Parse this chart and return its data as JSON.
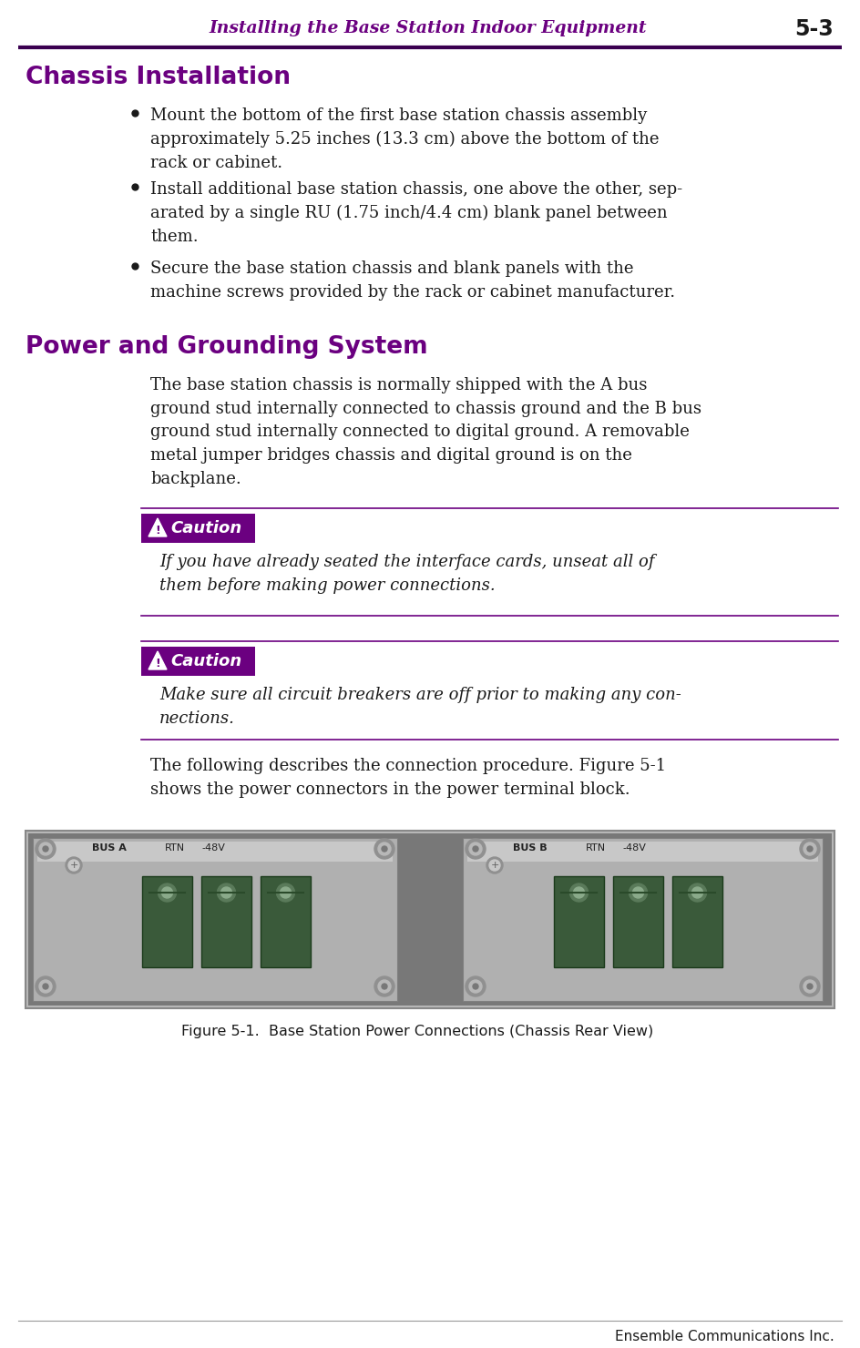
{
  "page_title": "Installing the Base Station Indoor Equipment",
  "page_number": "5-3",
  "section1_title": "Chassis Installation",
  "section2_title": "Power and Grounding System",
  "bullet1": "Mount the bottom of the first base station chassis assembly\napproximately 5.25 inches (13.3 cm) above the bottom of the\nrack or cabinet.",
  "bullet2": "Install additional base station chassis, one above the other, sep-\narated by a single RU (1.75 inch/4.4 cm) blank panel between\nthem.",
  "bullet3": "Secure the base station chassis and blank panels with the\nmachine screws provided by the rack or cabinet manufacturer.",
  "body_text": "The base station chassis is normally shipped with the A bus\nground stud internally connected to chassis ground and the B bus\nground stud internally connected to digital ground. A removable\nmetal jumper bridges chassis and digital ground is on the\nbackplane.",
  "caution_label": "Caution",
  "caution1_text": "If you have already seated the interface cards, unseat all of\nthem before making power connections.",
  "caution2_text": "Make sure all circuit breakers are off prior to making any con-\nnections.",
  "following_text": "The following describes the connection procedure. Figure 5-1\nshows the power connectors in the power terminal block.",
  "figure_caption": "Figure 5-1.  Base Station Power Connections (Chassis Rear View)",
  "footer_text": "Ensemble Communications Inc.",
  "bg_color": "#ffffff",
  "text_color": "#1a1a1a",
  "purple_color": "#6B0080",
  "caution_bg": "#6B0080",
  "header_line_color": "#3a0050",
  "separator_line_color": "#6B0080",
  "footer_line_color": "#999999"
}
